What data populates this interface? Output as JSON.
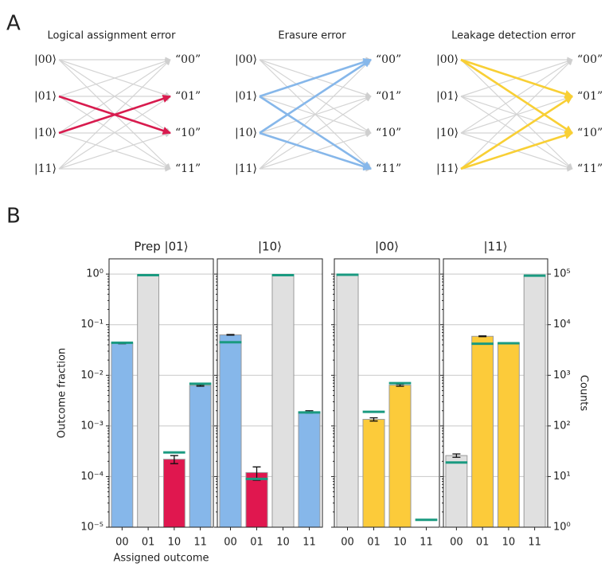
{
  "panel_labels": [
    "A",
    "B"
  ],
  "diagrams": [
    {
      "title": "Logical assignment error",
      "inputs": [
        "|00⟩",
        "|01⟩",
        "|10⟩",
        "|11⟩"
      ],
      "outputs": [
        "“00”",
        "“01”",
        "“10”",
        "“11”"
      ],
      "color": "#d81b4e"
    },
    {
      "title": "Erasure error",
      "inputs": [
        "|00⟩",
        "|01⟩",
        "|10⟩",
        "|11⟩"
      ],
      "outputs": [
        "“00”",
        "“01”",
        "“10”",
        "“11”"
      ],
      "color": "#86b7ea"
    },
    {
      "title": "Leakage detection error",
      "inputs": [
        "|00⟩",
        "|01⟩",
        "|10⟩",
        "|11⟩"
      ],
      "outputs": [
        "“00”",
        "“01”",
        "“10”",
        "“11”"
      ],
      "color": "#f8cf35"
    }
  ],
  "chart_data": {
    "type": "bar",
    "log_scale": true,
    "grid": true,
    "ylabel": "Outcome fraction",
    "xlabel": "Assigned outcome",
    "y2label": "Counts",
    "ylim": [
      1e-05,
      2
    ],
    "yticks": [
      {
        "value": 1e-05,
        "label": "10⁻⁵"
      },
      {
        "value": 0.0001,
        "label": "10⁻⁴"
      },
      {
        "value": 0.001,
        "label": "10⁻³"
      },
      {
        "value": 0.01,
        "label": "10⁻²"
      },
      {
        "value": 0.1,
        "label": "10⁻¹"
      },
      {
        "value": 1,
        "label": "10⁰"
      }
    ],
    "y2lim": [
      1,
      200000
    ],
    "y2ticks": [
      {
        "value": 1,
        "label": "10⁰"
      },
      {
        "value": 10,
        "label": "10¹"
      },
      {
        "value": 100,
        "label": "10²"
      },
      {
        "value": 1000,
        "label": "10³"
      },
      {
        "value": 10000,
        "label": "10⁴"
      },
      {
        "value": 100000,
        "label": "10⁵"
      }
    ],
    "reference_color": "#1a9a80",
    "panels": [
      {
        "title": "Prep |01⟩",
        "categories": [
          "00",
          "01",
          "10",
          "11"
        ],
        "values": [
          0.043,
          0.95,
          0.00022,
          0.0063
        ],
        "errors": [
          0.001,
          0.01,
          4e-05,
          0.0002
        ],
        "colors": [
          "#86b7ea",
          "#e0e0e0",
          "#e0174f",
          "#86b7ea"
        ],
        "reference_values": [
          0.044,
          0.95,
          0.0003,
          0.0068
        ]
      },
      {
        "title": "|10⟩",
        "categories": [
          "00",
          "01",
          "10",
          "11"
        ],
        "values": [
          0.063,
          0.00012,
          0.95,
          0.0019
        ],
        "errors": [
          0.001,
          3.5e-05,
          0.01,
          0.0001
        ],
        "colors": [
          "#86b7ea",
          "#e0174f",
          "#e0e0e0",
          "#86b7ea"
        ],
        "reference_values": [
          0.045,
          9e-05,
          0.95,
          0.00185
        ]
      },
      {
        "title": "|00⟩",
        "categories": [
          "00",
          "01",
          "10",
          "11"
        ],
        "values": [
          0.97,
          0.00135,
          0.0064,
          null
        ],
        "errors": [
          0.01,
          0.0001,
          0.0003,
          null
        ],
        "colors": [
          "#e0e0e0",
          "#fccb3a",
          "#fccb3a",
          null
        ],
        "reference_values": [
          0.97,
          0.0019,
          0.007,
          1.4e-05
        ]
      },
      {
        "title": "|11⟩",
        "categories": [
          "00",
          "01",
          "10",
          "11"
        ],
        "values": [
          0.00026,
          0.059,
          0.043,
          0.93
        ],
        "errors": [
          2e-05,
          0.001,
          0.001,
          0.01
        ],
        "colors": [
          "#e0e0e0",
          "#fccb3a",
          "#fccb3a",
          "#e0e0e0"
        ],
        "reference_values": [
          0.00019,
          0.042,
          0.043,
          0.93
        ]
      }
    ]
  }
}
